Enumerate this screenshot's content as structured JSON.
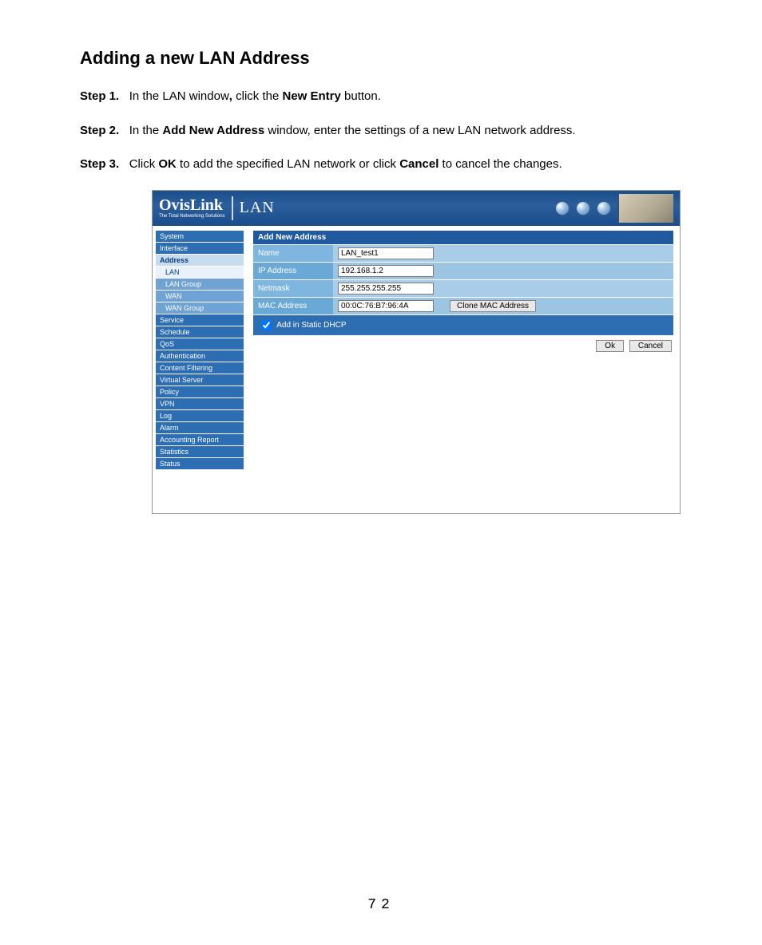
{
  "doc": {
    "title": "Adding a new LAN Address",
    "steps": [
      {
        "label": "Step 1.",
        "pre": "In the LAN window",
        "comma": ",",
        "mid": " click the ",
        "bold1": "New Entry",
        "post": " button."
      },
      {
        "label": "Step 2.",
        "pre": "In the ",
        "bold1": "Add New Address",
        "mid": " window, enter the settings of a new LAN network address.",
        "post": ""
      },
      {
        "label": "Step 3.",
        "pre": "Click ",
        "bold1": "OK",
        "mid": " to add the specified LAN network or click ",
        "bold2": "Cancel",
        "post": " to cancel the changes."
      }
    ],
    "page_number": "72"
  },
  "app": {
    "brand": "OvisLink",
    "brand_tag": "The Total Networking Solutions",
    "section": "LAN",
    "sidebar": {
      "items": [
        {
          "label": "System",
          "type": "item"
        },
        {
          "label": "Interface",
          "type": "item"
        },
        {
          "label": "Address",
          "type": "item",
          "active": true
        },
        {
          "label": "LAN",
          "type": "sub",
          "active": true
        },
        {
          "label": "LAN Group",
          "type": "sub"
        },
        {
          "label": "WAN",
          "type": "sub"
        },
        {
          "label": "WAN Group",
          "type": "sub"
        },
        {
          "label": "Service",
          "type": "item"
        },
        {
          "label": "Schedule",
          "type": "item"
        },
        {
          "label": "QoS",
          "type": "item"
        },
        {
          "label": "Authentication",
          "type": "item"
        },
        {
          "label": "Content Filtering",
          "type": "item"
        },
        {
          "label": "Virtual Server",
          "type": "item"
        },
        {
          "label": "Policy",
          "type": "item"
        },
        {
          "label": "VPN",
          "type": "item"
        },
        {
          "label": "Log",
          "type": "item"
        },
        {
          "label": "Alarm",
          "type": "item"
        },
        {
          "label": "Accounting Report",
          "type": "item"
        },
        {
          "label": "Statistics",
          "type": "item"
        },
        {
          "label": "Status",
          "type": "item"
        }
      ]
    },
    "form": {
      "header": "Add New Address",
      "rows": {
        "name": {
          "label": "Name",
          "value": "LAN_test1"
        },
        "ip": {
          "label": "IP Address",
          "value": "192.168.1.2"
        },
        "netmask": {
          "label": "Netmask",
          "value": "255.255.255.255"
        },
        "mac": {
          "label": "MAC Address",
          "value": "00:0C:76:B7:96:4A",
          "clone_btn": "Clone MAC Address"
        }
      },
      "dhcp_label": "Add in Static DHCP",
      "dhcp_checked": true,
      "ok": "Ok",
      "cancel": "Cancel"
    }
  },
  "colors": {
    "header_grad_top": "#1a4e8a",
    "header_grad_mid": "#2b5e9b",
    "nav_item_bg": "#2d6db2",
    "nav_sub_bg": "#6fa3d4",
    "nav_active_bg": "#c8dcf0",
    "form_header_bg": "#1f5a9e",
    "form_row_bg": "#7fb6df",
    "form_row_alt_bg": "#6aa9d6",
    "form_input_cell_bg": "#a9cde9"
  }
}
